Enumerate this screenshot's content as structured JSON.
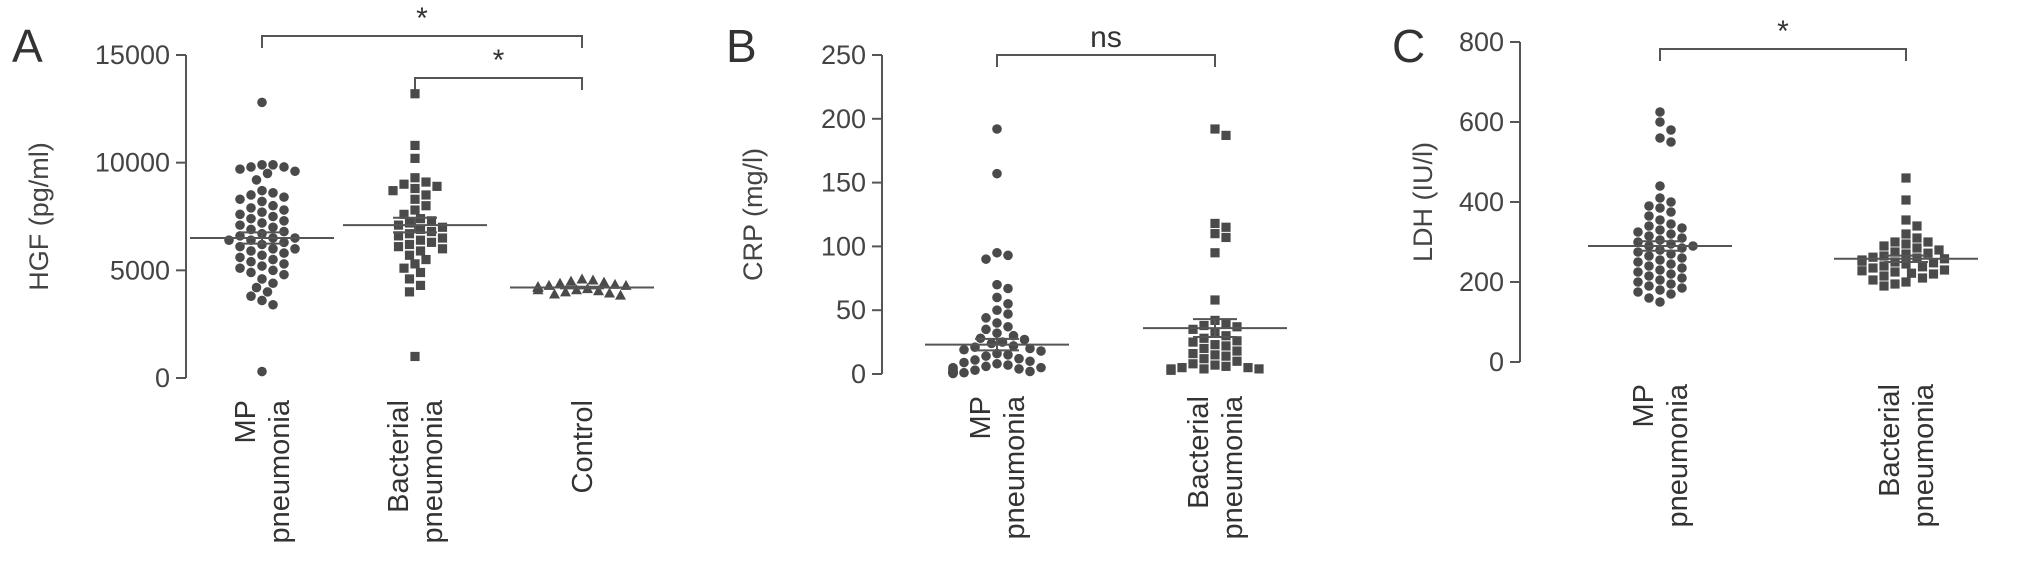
{
  "chart_data": [
    {
      "panel": "A",
      "type": "scatter",
      "ylabel": "HGF (pg/ml)",
      "ylim": [
        0,
        15000
      ],
      "yticks": [
        0,
        5000,
        10000,
        15000
      ],
      "categories": [
        [
          "MP",
          "pneumonia"
        ],
        [
          "Bacterial",
          "pneumonia"
        ],
        [
          "Control"
        ]
      ],
      "series": [
        {
          "marker": "circle",
          "mean": 6500,
          "sem": 260,
          "values": [
            12800,
            9900,
            9900,
            9800,
            9800,
            9700,
            9600,
            9500,
            9200,
            8700,
            8600,
            8500,
            8400,
            8300,
            8200,
            8000,
            7900,
            7800,
            7700,
            7600,
            7500,
            7400,
            7300,
            7200,
            7100,
            7000,
            6900,
            6800,
            6700,
            6600,
            6500,
            6500,
            6400,
            6400,
            6300,
            6200,
            6100,
            6000,
            6000,
            5900,
            5800,
            5700,
            5600,
            5500,
            5400,
            5300,
            5200,
            5100,
            5000,
            4900,
            4800,
            4600,
            4400,
            4200,
            4000,
            3800,
            3600,
            3400,
            300
          ]
        },
        {
          "marker": "square",
          "mean": 7100,
          "sem": 340,
          "values": [
            13200,
            10800,
            10200,
            9300,
            9100,
            9000,
            8900,
            8800,
            8700,
            8500,
            8300,
            8000,
            7800,
            7600,
            7400,
            7300,
            7200,
            7100,
            7000,
            6900,
            6800,
            6700,
            6600,
            6500,
            6400,
            6300,
            6200,
            6100,
            6000,
            5900,
            5700,
            5500,
            5300,
            5100,
            4900,
            4600,
            4300,
            4000,
            1000
          ]
        },
        {
          "marker": "triangle",
          "mean": 4200,
          "sem": 40,
          "values": [
            4600,
            4550,
            4500,
            4450,
            4400,
            4350,
            4300,
            4300,
            4250,
            4200,
            4200,
            4150,
            4100,
            4100,
            4050,
            4000,
            3950,
            3900,
            3850
          ]
        }
      ],
      "significance": [
        {
          "from": 0,
          "to": 2,
          "label": "*"
        },
        {
          "from": 1,
          "to": 2,
          "label": "*"
        }
      ]
    },
    {
      "panel": "B",
      "type": "scatter",
      "ylabel": "CRP (mg/l)",
      "ylim": [
        0,
        250
      ],
      "yticks": [
        0,
        50,
        100,
        150,
        200,
        250
      ],
      "categories": [
        [
          "MP",
          "pneumonia"
        ],
        [
          "Bacterial",
          "pneumonia"
        ]
      ],
      "series": [
        {
          "marker": "circle",
          "mean": 23,
          "sem": 4.5,
          "values": [
            192,
            157,
            95,
            93,
            90,
            70,
            67,
            60,
            55,
            50,
            47,
            44,
            40,
            37,
            35,
            32,
            30,
            28,
            27,
            25,
            24,
            22,
            21,
            20,
            19,
            18,
            16,
            15,
            14,
            12,
            11,
            10,
            9,
            8,
            7,
            6,
            5,
            5,
            4,
            4,
            3,
            3,
            2,
            2,
            2,
            1,
            1,
            1,
            1,
            1,
            1,
            0.5,
            0.5,
            0.5
          ]
        },
        {
          "marker": "square",
          "mean": 36,
          "sem": 7,
          "values": [
            192,
            187,
            118,
            115,
            110,
            107,
            95,
            58,
            42,
            40,
            38,
            37,
            35,
            32,
            30,
            28,
            26,
            25,
            23,
            22,
            20,
            18,
            16,
            15,
            14,
            12,
            10,
            8,
            7,
            6,
            5,
            5,
            4,
            4,
            4,
            3,
            3
          ]
        }
      ],
      "significance": [
        {
          "from": 0,
          "to": 1,
          "label": "ns"
        }
      ]
    },
    {
      "panel": "C",
      "type": "scatter",
      "ylabel": "LDH (IU/l)",
      "ylim": [
        0,
        800
      ],
      "yticks": [
        0,
        200,
        400,
        600,
        800
      ],
      "categories": [
        [
          "MP",
          "pneumonia"
        ],
        [
          "Bacterial",
          "pneumonia"
        ]
      ],
      "series": [
        {
          "marker": "circle",
          "mean": 290,
          "sem": 12,
          "values": [
            625,
            600,
            580,
            560,
            550,
            440,
            410,
            400,
            390,
            385,
            375,
            365,
            355,
            345,
            340,
            335,
            330,
            325,
            320,
            315,
            310,
            305,
            300,
            295,
            290,
            290,
            285,
            280,
            275,
            270,
            265,
            260,
            255,
            250,
            245,
            240,
            235,
            230,
            225,
            220,
            215,
            210,
            205,
            200,
            195,
            190,
            185,
            180,
            175,
            170,
            160,
            150
          ]
        },
        {
          "marker": "square",
          "mean": 258,
          "sem": 8,
          "values": [
            460,
            405,
            355,
            340,
            320,
            310,
            300,
            300,
            295,
            290,
            285,
            280,
            275,
            272,
            270,
            265,
            262,
            260,
            258,
            255,
            252,
            250,
            248,
            245,
            240,
            238,
            235,
            230,
            228,
            225,
            222,
            220,
            215,
            210,
            205,
            200,
            195,
            190
          ]
        }
      ],
      "significance": [
        {
          "from": 0,
          "to": 1,
          "label": "*"
        }
      ]
    }
  ]
}
